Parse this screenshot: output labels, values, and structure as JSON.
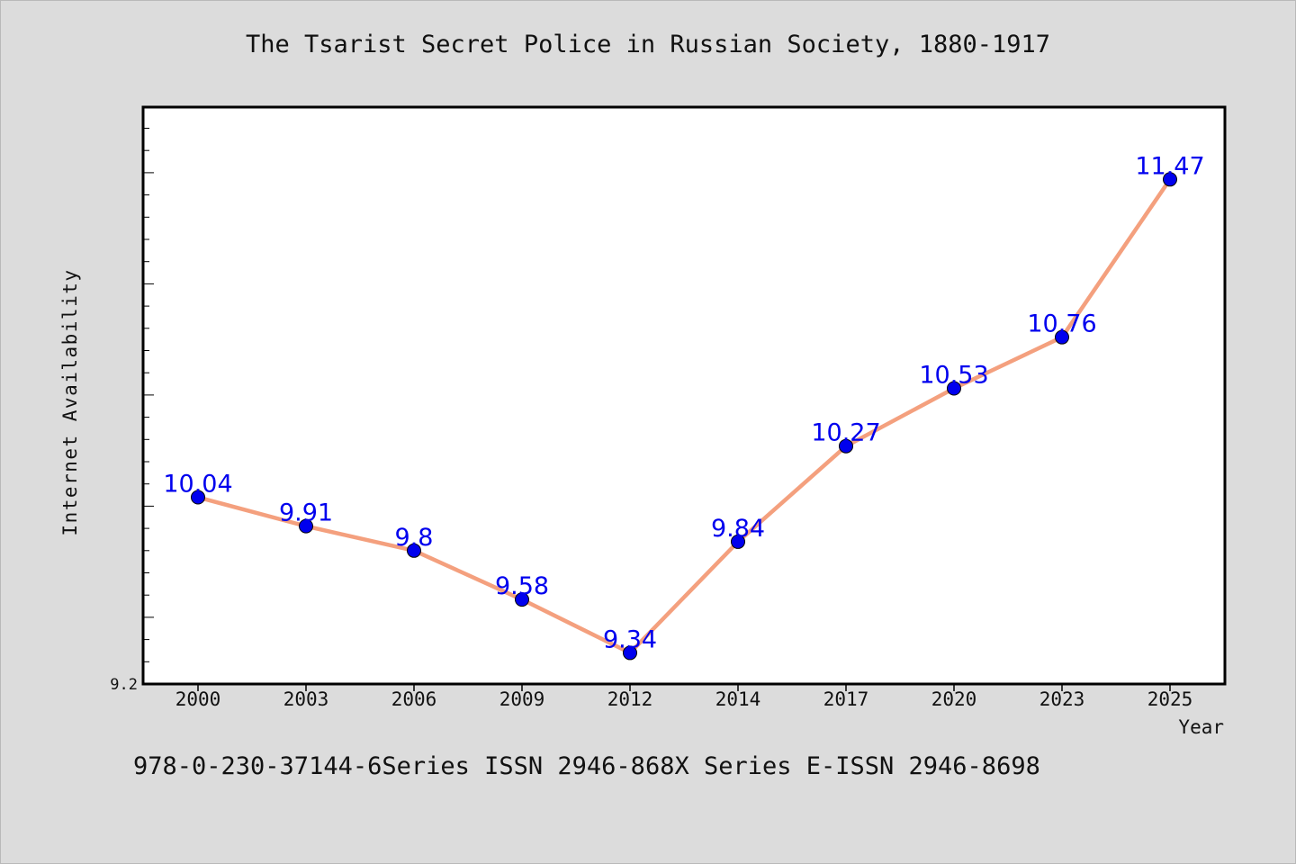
{
  "chart_data": {
    "type": "line",
    "title": "The Tsarist Secret Police in Russian Society, 1880-1917",
    "xlabel": "Year",
    "ylabel": "Internet Availability",
    "categories": [
      "2000",
      "2003",
      "2006",
      "2009",
      "2012",
      "2014",
      "2017",
      "2020",
      "2023",
      "2025"
    ],
    "values": [
      10.04,
      9.91,
      9.8,
      9.58,
      9.34,
      9.84,
      10.27,
      10.53,
      10.76,
      11.47
    ],
    "data_labels": [
      "10.04",
      "9.91",
      "9.8",
      "9.58",
      "9.34",
      "9.84",
      "10.27",
      "10.53",
      "10.76",
      "11.47"
    ],
    "y_tick_labels": [
      "9.2"
    ],
    "ylim": [
      9.2,
      11.8
    ],
    "grid": false,
    "line_color": "#f4a07e",
    "marker_color": "#0000ee",
    "label_color": "#0000ee"
  },
  "footer": {
    "text": "978-0-230-37144-6Series ISSN 2946-868X Series E-ISSN 2946-8698"
  }
}
